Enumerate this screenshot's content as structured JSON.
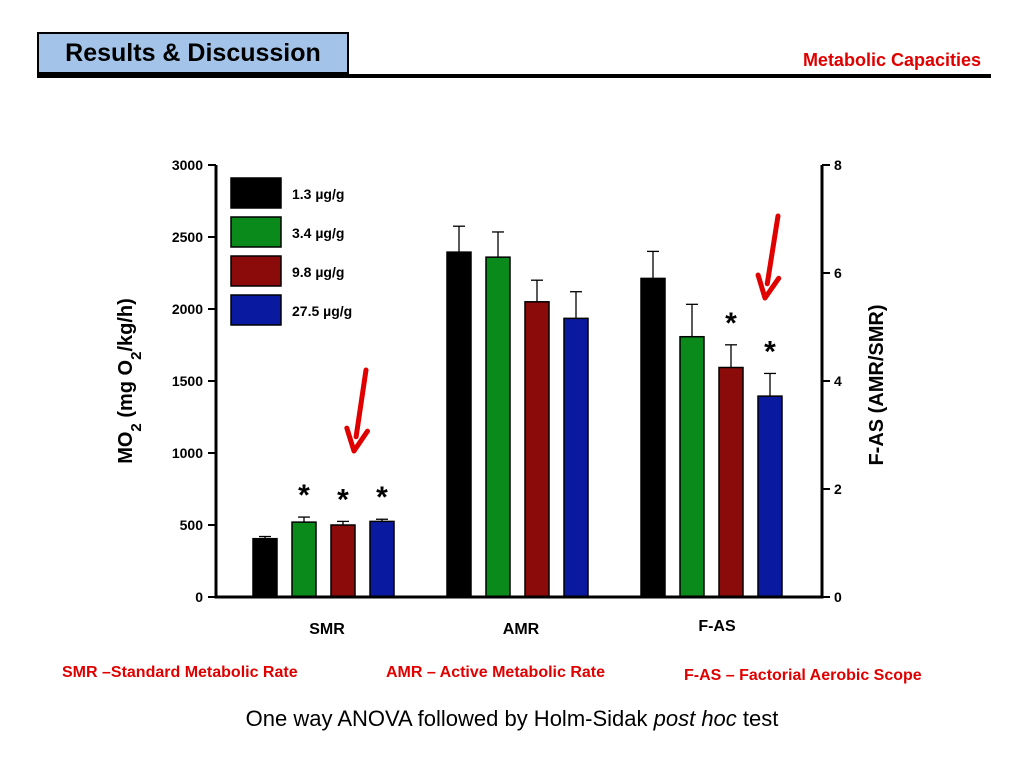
{
  "header": {
    "title": "Results & Discussion",
    "section": "Metabolic Capacities"
  },
  "colors": {
    "header_fill": "#a3c4e8",
    "accent_red": "#e00000",
    "series": [
      "#000000",
      "#0a8a1a",
      "#8b0a0a",
      "#0a1aa0"
    ]
  },
  "chart_data": {
    "type": "bar",
    "categories": [
      "SMR",
      "AMR",
      "F-AS"
    ],
    "series": [
      {
        "name": "1.3 µg/g",
        "values": [
          405,
          2395,
          5.9
        ],
        "errors": [
          15,
          180,
          0.5
        ]
      },
      {
        "name": "3.4 µg/g",
        "values": [
          520,
          2360,
          4.82
        ],
        "errors": [
          35,
          175,
          0.6
        ]
      },
      {
        "name": "9.8 µg/g",
        "values": [
          500,
          2050,
          4.25
        ],
        "errors": [
          25,
          150,
          0.42
        ]
      },
      {
        "name": "27.5 µg/g",
        "values": [
          525,
          1935,
          3.72
        ],
        "errors": [
          15,
          185,
          0.42
        ]
      }
    ],
    "left_axis": {
      "label_main": "MO",
      "label_sub": "2",
      "label_mid": " (mg O",
      "label_sub2": "2",
      "label_end": "/kg/h)",
      "range": [
        0,
        3000
      ],
      "ticks": [
        "0",
        "500",
        "1000",
        "1500",
        "2000",
        "2500",
        "3000"
      ]
    },
    "right_axis": {
      "label": "F-AS (AMR/SMR)",
      "range": [
        0,
        8
      ],
      "ticks": [
        "0",
        "2",
        "4",
        "6",
        "8"
      ],
      "applies_to": "F-AS"
    },
    "significance": {
      "marker": "*",
      "SMR": [
        false,
        true,
        true,
        true
      ],
      "AMR": [
        false,
        false,
        false,
        false
      ],
      "F-AS": [
        false,
        false,
        true,
        true
      ]
    },
    "legend_position": "top-left",
    "grid": false
  },
  "definitions": {
    "smr": "SMR –Standard Metabolic Rate",
    "amr": "AMR – Active Metabolic Rate",
    "fas": "F-AS – Factorial Aerobic Scope"
  },
  "footnote": {
    "before": "One way ANOVA followed by Holm-Sidak ",
    "italic": "post hoc",
    "after": " test"
  }
}
